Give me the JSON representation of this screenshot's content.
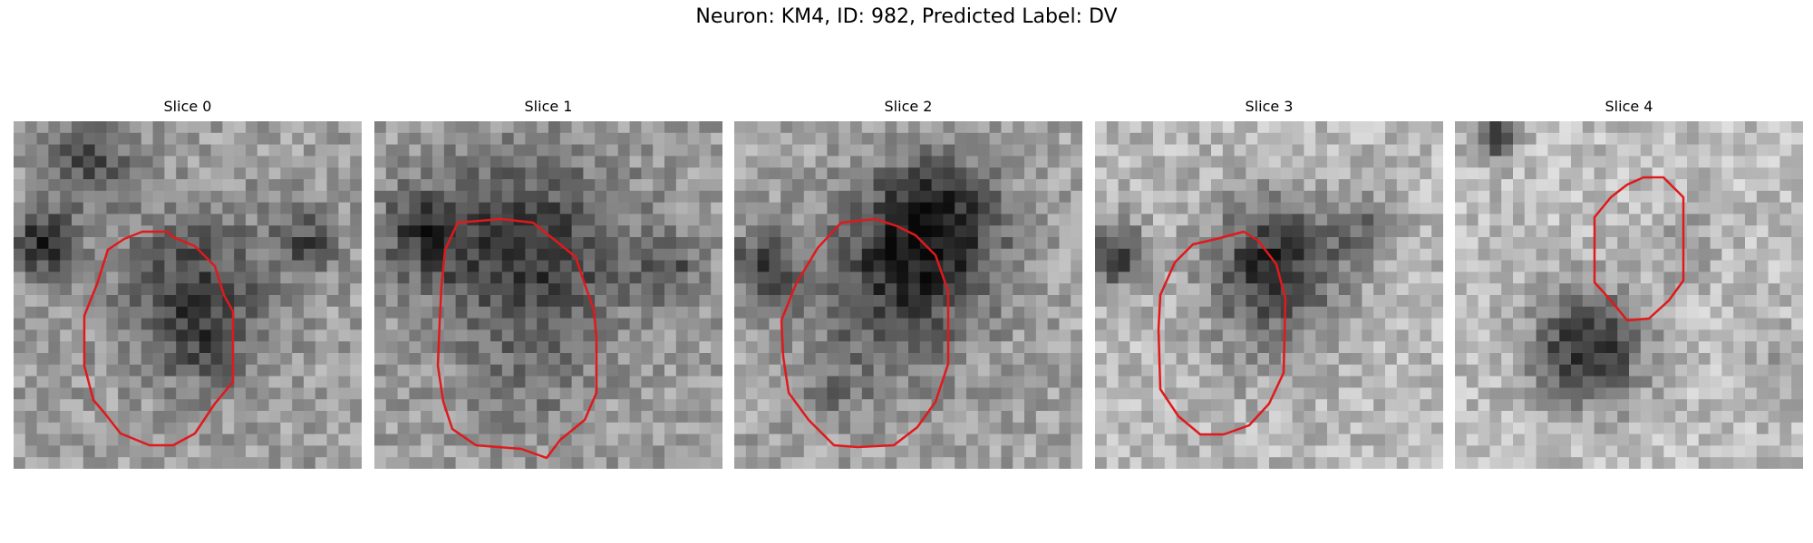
{
  "figure": {
    "title": "Neuron: KM4, ID: 982, Predicted Label: DV"
  },
  "panels": [
    {
      "label": "Slice 0",
      "contour_color": "#e0191c"
    },
    {
      "label": "Slice 1",
      "contour_color": "#e0191c"
    },
    {
      "label": "Slice 2",
      "contour_color": "#e0191c"
    },
    {
      "label": "Slice 3",
      "contour_color": "#e0191c"
    },
    {
      "label": "Slice 4",
      "contour_color": "#e0191c"
    }
  ]
}
